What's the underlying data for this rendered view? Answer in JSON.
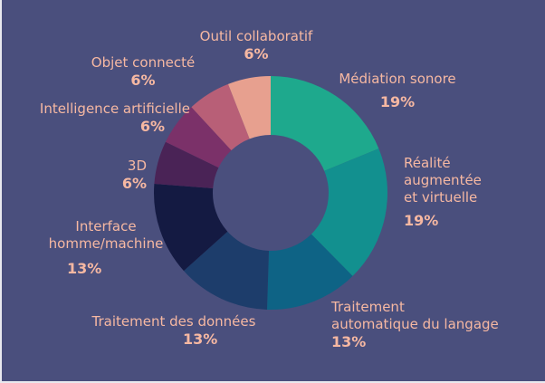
{
  "chart_data": {
    "type": "pie",
    "categories": [
      "Médiation sonore",
      "Réalité augmentée et virtuelle",
      "Traitement automatique du langage",
      "Traitement des données",
      "Interface homme/machine",
      "3D",
      "Intelligence artificielle",
      "Objet connecté",
      "Outil collaboratif"
    ],
    "values": [
      19,
      19,
      13,
      13,
      13,
      6,
      6,
      6,
      6
    ],
    "value_labels": [
      "19%",
      "19%",
      "13%",
      "13%",
      "13%",
      "6%",
      "6%",
      "6%",
      "6%"
    ],
    "colors": [
      "#1ea98d",
      "#12908f",
      "#0e6385",
      "#1d3d6b",
      "#141a42",
      "#4a2356",
      "#7b3169",
      "#b85f77",
      "#e7a08f"
    ],
    "label_lines": [
      [
        "Médiation sonore"
      ],
      [
        "Réalité",
        "augmentée",
        "et virtuelle"
      ],
      [
        "Traitement",
        "automatique du langage"
      ],
      [
        "Traitement des données"
      ],
      [
        "Interface",
        "homme/machine"
      ],
      [
        "3D"
      ],
      [
        "Intelligence artificielle"
      ],
      [
        "Objet connecté"
      ],
      [
        "Outil collaboratif"
      ]
    ],
    "style": "donut"
  }
}
